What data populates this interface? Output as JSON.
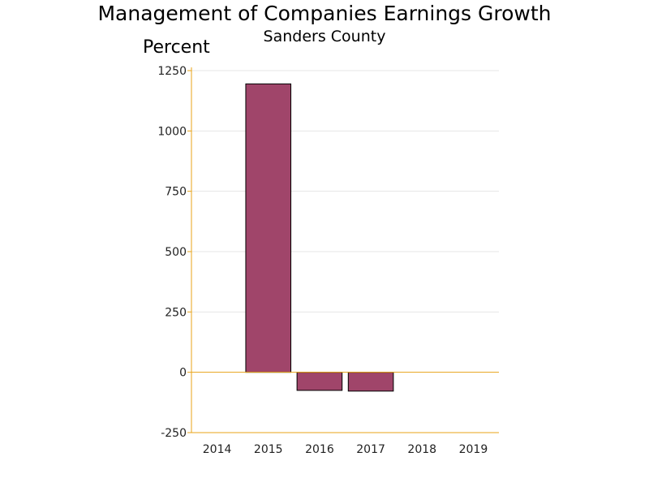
{
  "chart_data": {
    "type": "bar",
    "title": "Management of Companies Earnings Growth",
    "subtitle": "Sanders County",
    "ylabel": "Percent",
    "xlabel": "",
    "categories": [
      "2014",
      "2015",
      "2016",
      "2017",
      "2018",
      "2019"
    ],
    "values": [
      null,
      1195,
      -75,
      -78,
      null,
      null
    ],
    "ylim": [
      -250,
      1250
    ],
    "yticks": [
      -250,
      0,
      250,
      500,
      750,
      1000,
      1250
    ],
    "grid": true,
    "bar_color": "#a0456a",
    "axis_color": "#e8a317"
  }
}
